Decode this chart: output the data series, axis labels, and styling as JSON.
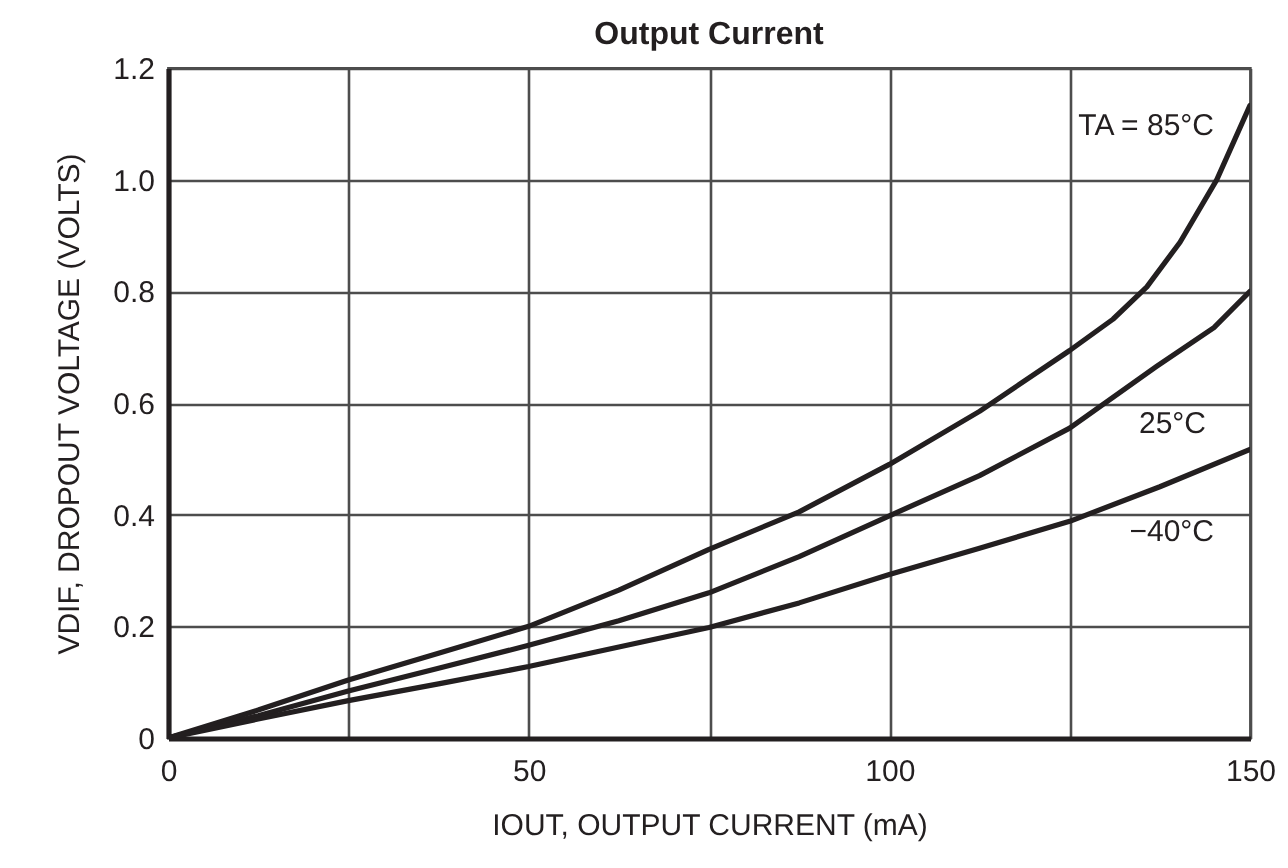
{
  "chart_data": {
    "type": "line",
    "title": "Output Current",
    "xlabel": "IOUT, OUTPUT CURRENT (mA)",
    "ylabel": "VDIF, DROPOUT VOLTAGE (VOLTS)",
    "xlim": [
      0,
      150
    ],
    "xticks": [
      0,
      {
        "value": 25,
        "label": null
      },
      50,
      {
        "value": 75,
        "label": null
      },
      100,
      {
        "value": 125,
        "label": null
      },
      150
    ],
    "ylim": [
      0,
      1.2
    ],
    "yticks": [
      0,
      0.2,
      0.4,
      0.6,
      0.8,
      {
        "value": 1,
        "label": "1.0"
      },
      1.2
    ],
    "grid": true,
    "line_style": "solid",
    "series": [
      {
        "name": "TA = 85°C",
        "color": "#231f20",
        "x": [
          0,
          12.5,
          25,
          37.5,
          50,
          62.5,
          75,
          87.5,
          100,
          112.5,
          125,
          131,
          135.7,
          140.3,
          145.4,
          150
        ],
        "values": [
          0,
          0.05,
          0.104,
          0.152,
          0.2,
          0.265,
          0.338,
          0.405,
          0.49,
          0.585,
          0.694,
          0.75,
          0.808,
          0.888,
          1.0,
          1.133
        ]
      },
      {
        "name": "25°C",
        "color": "#231f20",
        "x": [
          0,
          12.5,
          25,
          37.5,
          50,
          62.5,
          75,
          87.5,
          100,
          112.5,
          125,
          137,
          145,
          150
        ],
        "values": [
          0,
          0.04,
          0.084,
          0.125,
          0.166,
          0.21,
          0.26,
          0.325,
          0.398,
          0.47,
          0.555,
          0.665,
          0.735,
          0.8
        ]
      },
      {
        "name": "−40°C",
        "color": "#231f20",
        "x": [
          0,
          12.5,
          25,
          37.5,
          50,
          62.5,
          75,
          87.5,
          100,
          112.5,
          125,
          137.5,
          150
        ],
        "values": [
          0,
          0.034,
          0.067,
          0.097,
          0.128,
          0.163,
          0.198,
          0.242,
          0.293,
          0.34,
          0.388,
          0.45,
          0.517
        ]
      }
    ]
  }
}
